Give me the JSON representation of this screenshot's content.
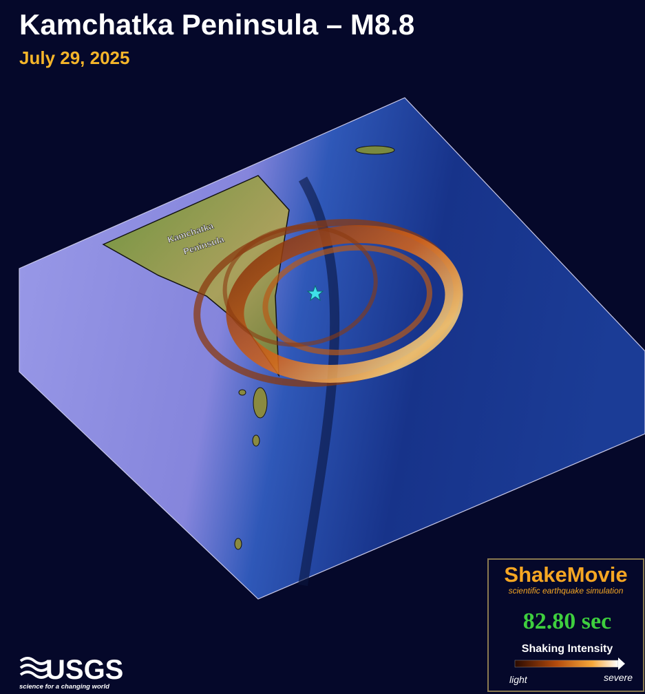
{
  "header": {
    "title": "Kamchatka Peninsula – M8.8",
    "date": "July 29, 2025"
  },
  "map": {
    "label_lines": [
      "Kamchatka",
      "Peninsula"
    ]
  },
  "legend": {
    "product": "ShakeMovie",
    "tagline": "scientific earthquake simulation",
    "elapsed": "82.80 sec",
    "scale_title": "Shaking Intensity",
    "scale_min": "light",
    "scale_max": "severe"
  },
  "logo": {
    "name": "USGS",
    "tagline": "science for a changing world"
  }
}
